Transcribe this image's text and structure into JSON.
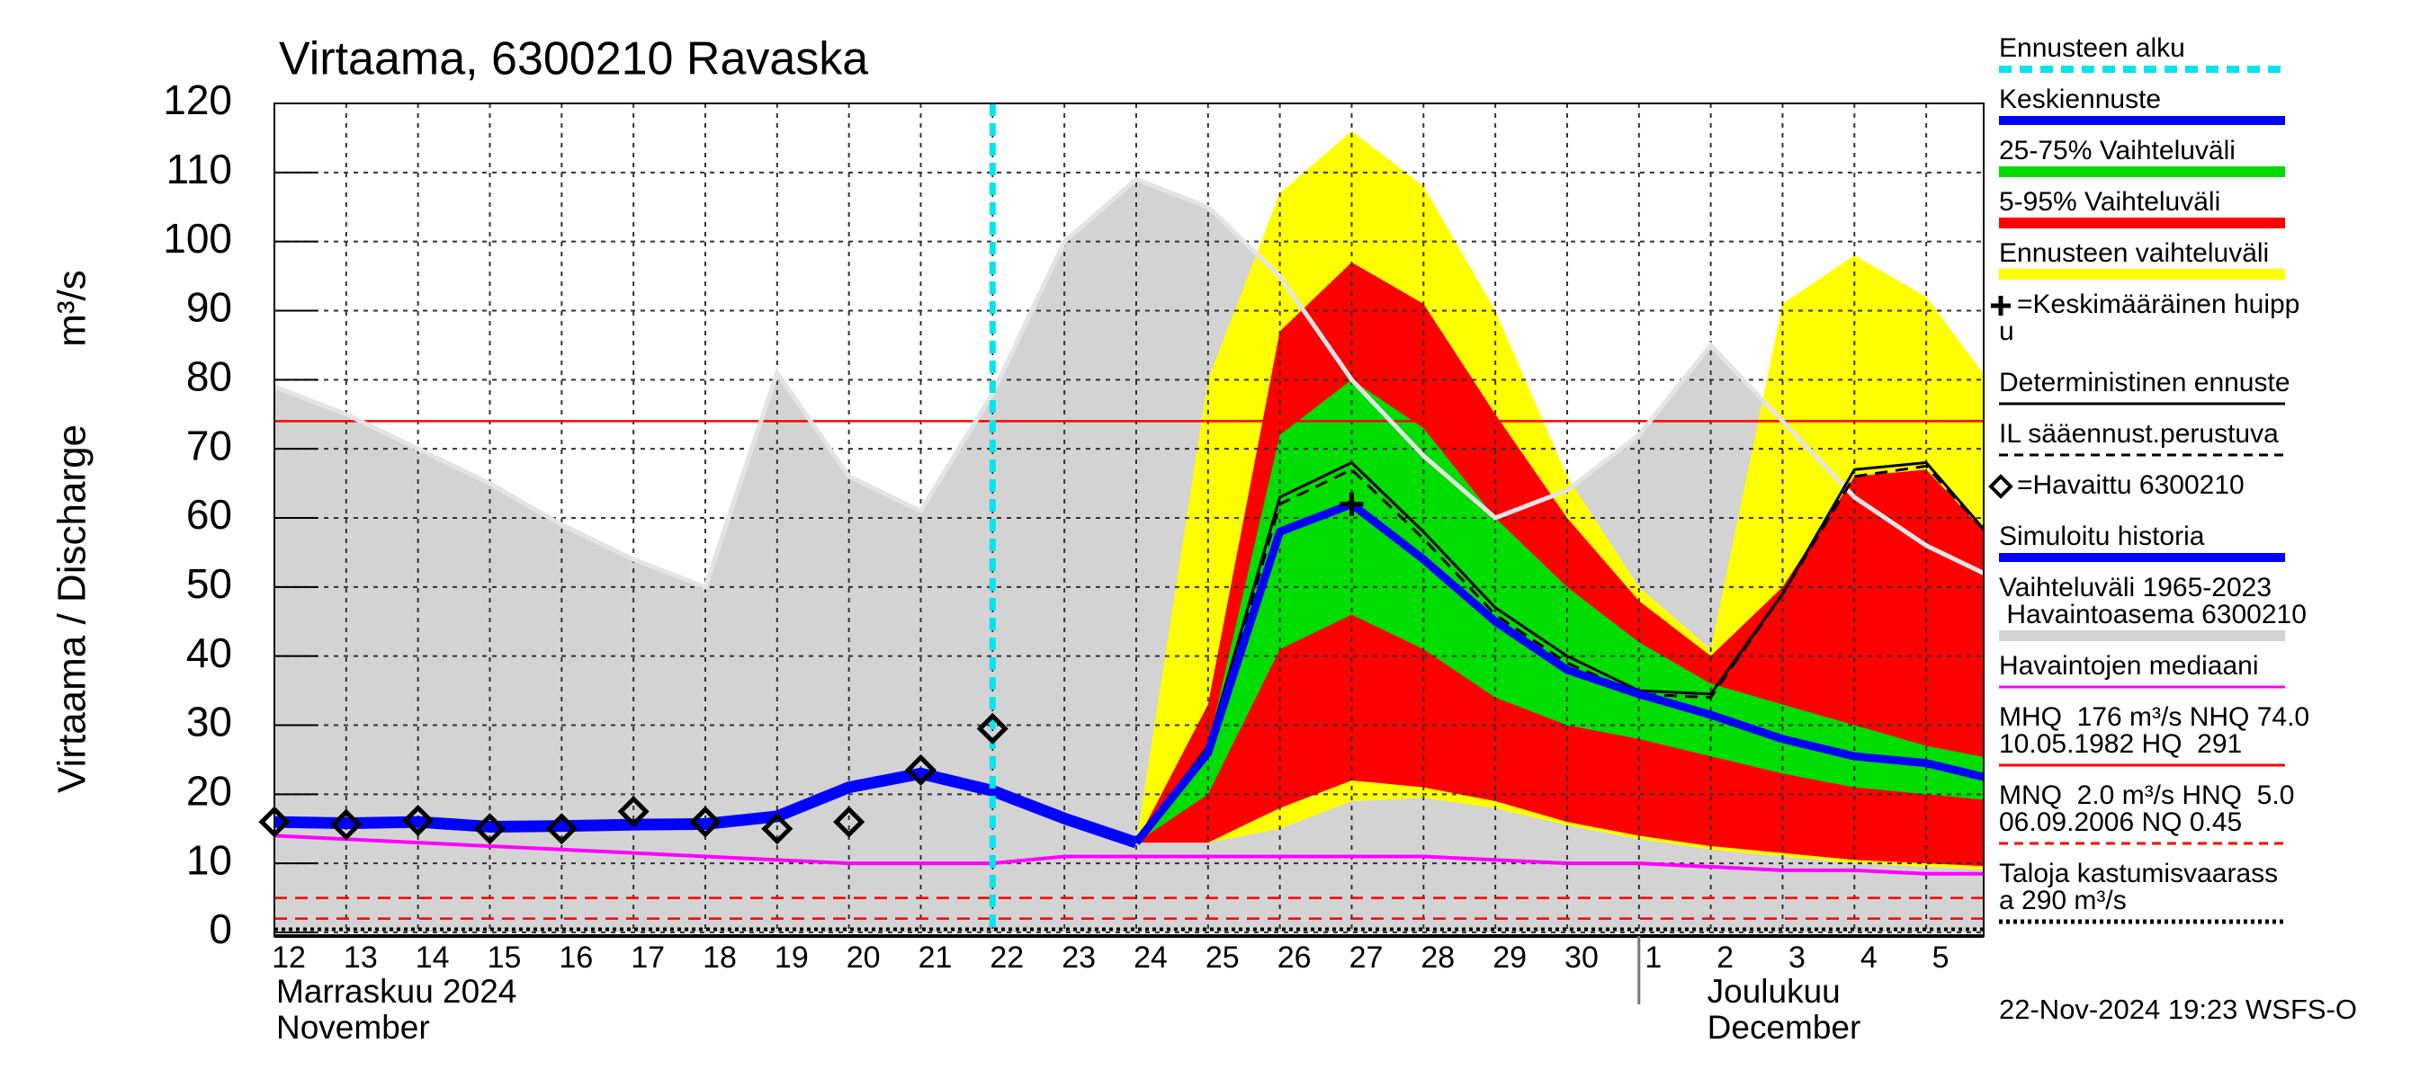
{
  "chart_data": {
    "type": "line",
    "title": "Virtaama, 6300210 Ravaska",
    "y_label": "Virtaama / Discharge",
    "y_unit": "m³/s",
    "footer": "22-Nov-2024 19:23 WSFS-O",
    "categories": [
      "12",
      "13",
      "14",
      "15",
      "16",
      "17",
      "18",
      "19",
      "20",
      "21",
      "22",
      "23",
      "24",
      "25",
      "26",
      "27",
      "28",
      "29",
      "30",
      "1",
      "2",
      "3",
      "4",
      "5",
      null
    ],
    "months": [
      {
        "lines": [
          "Marraskuu 2024",
          "November"
        ],
        "start": "12"
      },
      {
        "lines": [
          "Joulukuu",
          "December"
        ],
        "start": "1"
      }
    ],
    "ylim": [
      0,
      120
    ],
    "yticks": [
      0,
      10,
      20,
      30,
      40,
      50,
      60,
      70,
      80,
      90,
      100,
      110,
      120
    ],
    "grid": true,
    "forecast_start": "22",
    "forecast_start_color": "#00e5ee",
    "areas": [
      {
        "color": "#d3d3d3",
        "edge_color": "#e4e4e4",
        "upper": [
          79,
          75,
          70,
          65,
          59,
          54,
          50,
          81,
          66,
          61,
          78,
          100,
          109,
          105,
          95,
          80,
          69,
          60,
          64,
          72,
          85,
          74,
          63,
          56,
          51
        ]
      },
      {
        "color": "#ffff00",
        "upper": [
          null,
          null,
          null,
          null,
          null,
          null,
          null,
          null,
          null,
          null,
          null,
          null,
          13,
          80,
          107,
          116,
          108,
          90,
          66,
          50,
          41,
          91,
          98,
          92,
          78
        ],
        "lower": [
          null,
          null,
          null,
          null,
          null,
          null,
          null,
          null,
          null,
          null,
          null,
          null,
          13,
          13,
          15,
          19,
          19.5,
          18,
          15.5,
          13.5,
          12,
          11,
          10,
          9.5,
          9
        ]
      },
      {
        "color": "#ff0000",
        "upper": [
          null,
          null,
          null,
          null,
          null,
          null,
          null,
          null,
          null,
          null,
          null,
          null,
          13,
          33,
          87,
          97,
          91,
          75,
          60,
          48,
          40,
          50,
          66,
          67,
          56
        ],
        "lower": [
          null,
          null,
          null,
          null,
          null,
          null,
          null,
          null,
          null,
          null,
          null,
          null,
          13,
          13,
          18,
          22,
          21,
          19,
          16,
          14,
          12.5,
          11.5,
          10.5,
          10,
          9.5
        ]
      },
      {
        "color": "#00dd00",
        "upper": [
          null,
          null,
          null,
          null,
          null,
          null,
          null,
          null,
          null,
          null,
          null,
          null,
          13,
          27,
          72,
          80,
          73,
          60,
          50,
          42,
          36,
          33,
          30,
          27,
          25
        ],
        "lower": [
          null,
          null,
          null,
          null,
          null,
          null,
          null,
          null,
          null,
          null,
          null,
          null,
          13,
          20,
          41,
          46,
          41,
          34,
          30,
          28,
          25.5,
          23,
          21,
          20,
          19
        ]
      }
    ],
    "reference_lines": [
      {
        "value": 74,
        "color": "#ff0000",
        "style": "solid"
      },
      {
        "value": 5,
        "color": "#ff0000",
        "style": "dashed"
      },
      {
        "value": 2,
        "color": "#ff0000",
        "style": "dashed"
      },
      {
        "value": 0.45,
        "color": "#000000",
        "style": "dotted"
      }
    ],
    "lines": [
      {
        "color": "#ff00ff",
        "style": "solid",
        "values": [
          14,
          13.5,
          13,
          12.5,
          12,
          11.5,
          11,
          10.5,
          10,
          10,
          10,
          11,
          11,
          11,
          11,
          11,
          11,
          10.5,
          10,
          10,
          9.5,
          9,
          9,
          8.5,
          8.5
        ]
      },
      {
        "color": "#000000",
        "style": "solid",
        "values": [
          null,
          null,
          null,
          null,
          null,
          null,
          null,
          null,
          null,
          null,
          null,
          null,
          13,
          27,
          63,
          68,
          58,
          47,
          40,
          35,
          34.5,
          49,
          67,
          68,
          56
        ]
      },
      {
        "color": "#000000",
        "style": "dashed",
        "values": [
          null,
          null,
          null,
          null,
          null,
          null,
          null,
          null,
          null,
          null,
          null,
          null,
          13,
          26,
          62,
          67,
          57,
          46,
          39,
          34.5,
          34,
          49,
          66,
          67.5,
          56
        ]
      },
      {
        "color": "#0000ff",
        "style": "solid",
        "values": [
          null,
          null,
          null,
          null,
          null,
          null,
          null,
          null,
          null,
          null,
          null,
          null,
          13,
          26,
          58,
          62,
          54,
          45,
          38,
          34.5,
          31.5,
          28,
          25.5,
          24.5,
          22
        ]
      },
      {
        "color": "#0000ff",
        "style": "thick",
        "values": [
          16,
          15.8,
          16,
          15.3,
          15.4,
          15.6,
          15.7,
          16.8,
          21,
          23,
          20.5,
          16.5,
          13,
          null,
          null,
          null,
          null,
          null,
          null,
          null,
          null,
          null,
          null,
          null,
          null
        ]
      }
    ],
    "observed": [
      16,
      15.6,
      16.2,
      15,
      15,
      17.5,
      16,
      15,
      16,
      23.5,
      29.5,
      null,
      null,
      null,
      null,
      null,
      null,
      null,
      null,
      null,
      null,
      null,
      null,
      null,
      null
    ],
    "peak": [
      null,
      null,
      null,
      null,
      null,
      null,
      null,
      null,
      null,
      null,
      null,
      null,
      null,
      null,
      null,
      62,
      null,
      null,
      null,
      null,
      null,
      null,
      null,
      null,
      null
    ],
    "legend": [
      {
        "lines": [
          "Ennusteen alku"
        ],
        "color": "#00e5ee",
        "style": "dashed"
      },
      {
        "lines": [
          "Keskiennuste"
        ],
        "color": "#0000ff",
        "style": "solid"
      },
      {
        "lines": [
          "25-75% Vaihteluväli"
        ],
        "color": "#00dd00",
        "style": "band"
      },
      {
        "lines": [
          "5-95% Vaihteluväli"
        ],
        "color": "#ff0000",
        "style": "band"
      },
      {
        "lines": [
          "Ennusteen vaihteluväli"
        ],
        "color": "#ffff00",
        "style": "band"
      },
      {
        "lines": [
          "=Keskimääräinen huipp",
          "u"
        ],
        "color": "#000000",
        "style": "plus"
      },
      {
        "lines": [
          "Deterministinen ennuste"
        ],
        "color": "#000000",
        "style": "thin"
      },
      {
        "lines": [
          "IL sääennust.perustuva"
        ],
        "color": "#000000",
        "style": "thin-dashed"
      },
      {
        "lines": [
          "=Havaittu 6300210"
        ],
        "color": "#000000",
        "style": "diamond"
      },
      {
        "lines": [
          "Simuloitu historia"
        ],
        "color": "#0000ff",
        "style": "solid"
      },
      {
        "lines": [
          "Vaihteluväli 1965-2023",
          " Havaintoasema 6300210"
        ],
        "color": "#d3d3d3",
        "style": "band"
      },
      {
        "lines": [
          "Havaintojen mediaani"
        ],
        "color": "#ff00ff",
        "style": "thin"
      },
      {
        "lines": [
          "MHQ  176 m³/s NHQ 74.0",
          "10.05.1982 HQ  291"
        ],
        "color": "#ff0000",
        "style": "thin"
      },
      {
        "lines": [
          "MNQ  2.0 m³/s HNQ  5.0",
          "06.09.2006 NQ 0.45"
        ],
        "color": "#ff0000",
        "style": "thin-dashed"
      },
      {
        "lines": [
          "Taloja kastumisvaarass",
          "a 290 m³/s"
        ],
        "color": "#000000",
        "style": "dotted"
      }
    ]
  }
}
